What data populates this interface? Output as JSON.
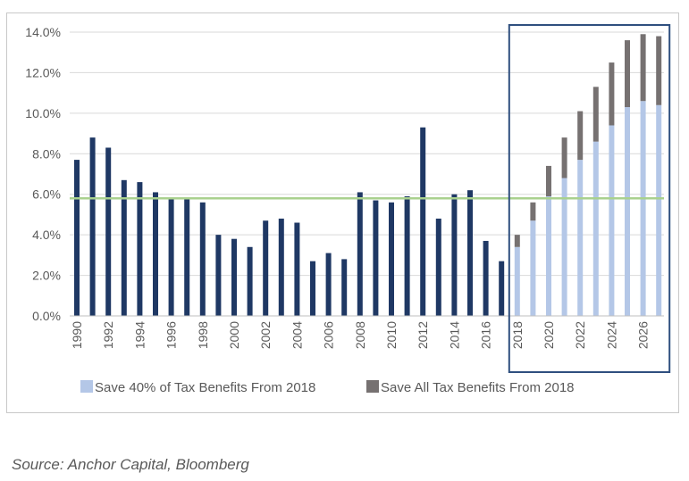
{
  "source_note": "Source: Anchor Capital, Bloomberg",
  "colors": {
    "historical": "#1f3864",
    "save40": "#b4c7e7",
    "saveAll": "#767171",
    "avgLine": "#a9d18e",
    "highlightBox": "#2f4f7f",
    "grid": "#d9d9d9"
  },
  "chart_data": {
    "type": "bar",
    "stacked": true,
    "y_axis": {
      "ylim": [
        0,
        14
      ],
      "ticks": [
        0,
        2,
        4,
        6,
        8,
        10,
        12,
        14
      ],
      "tick_labels": [
        "0.0%",
        "2.0%",
        "4.0%",
        "6.0%",
        "8.0%",
        "10.0%",
        "12.0%",
        "14.0%"
      ],
      "grid": true
    },
    "x_axis": {
      "categories": [
        1990,
        1991,
        1992,
        1993,
        1994,
        1995,
        1996,
        1997,
        1998,
        1999,
        2000,
        2001,
        2002,
        2003,
        2004,
        2005,
        2006,
        2007,
        2008,
        2009,
        2010,
        2011,
        2012,
        2013,
        2014,
        2015,
        2016,
        2017,
        2018,
        2019,
        2020,
        2021,
        2022,
        2023,
        2024,
        2025,
        2026,
        2027
      ],
      "tick_labels": [
        "1990",
        "1992",
        "1994",
        "1996",
        "1998",
        "2000",
        "2002",
        "2004",
        "2006",
        "2008",
        "2010",
        "2012",
        "2014",
        "2016",
        "2018",
        "2020",
        "2022",
        "2024",
        "2026"
      ]
    },
    "historical": {
      "years": [
        1990,
        1991,
        1992,
        1993,
        1994,
        1995,
        1996,
        1997,
        1998,
        1999,
        2000,
        2001,
        2002,
        2003,
        2004,
        2005,
        2006,
        2007,
        2008,
        2009,
        2010,
        2011,
        2012,
        2013,
        2014,
        2015,
        2016,
        2017
      ],
      "values": [
        7.7,
        8.8,
        8.3,
        6.7,
        6.6,
        6.1,
        5.8,
        5.8,
        5.6,
        4.0,
        3.8,
        3.4,
        4.7,
        4.8,
        4.6,
        2.7,
        3.1,
        2.8,
        6.1,
        5.7,
        5.6,
        5.9,
        9.3,
        4.8,
        6.0,
        6.2,
        3.7,
        2.7
      ]
    },
    "series": [
      {
        "name": "Save 40% of Tax Benefits From 2018",
        "years": [
          2018,
          2019,
          2020,
          2021,
          2022,
          2023,
          2024,
          2025,
          2026,
          2027
        ],
        "values": [
          3.4,
          4.7,
          5.9,
          6.8,
          7.7,
          8.6,
          9.4,
          10.3,
          10.6,
          10.4
        ]
      },
      {
        "name": "Save All Tax Benefits From 2018",
        "years": [
          2018,
          2019,
          2020,
          2021,
          2022,
          2023,
          2024,
          2025,
          2026,
          2027
        ],
        "values": [
          0.6,
          0.9,
          1.5,
          2.0,
          2.4,
          2.7,
          3.1,
          3.3,
          3.3,
          3.4
        ]
      }
    ],
    "reference_line": {
      "value": 5.8
    },
    "highlight_range": [
      2018,
      2027
    ],
    "legend_position": "bottom-center"
  }
}
